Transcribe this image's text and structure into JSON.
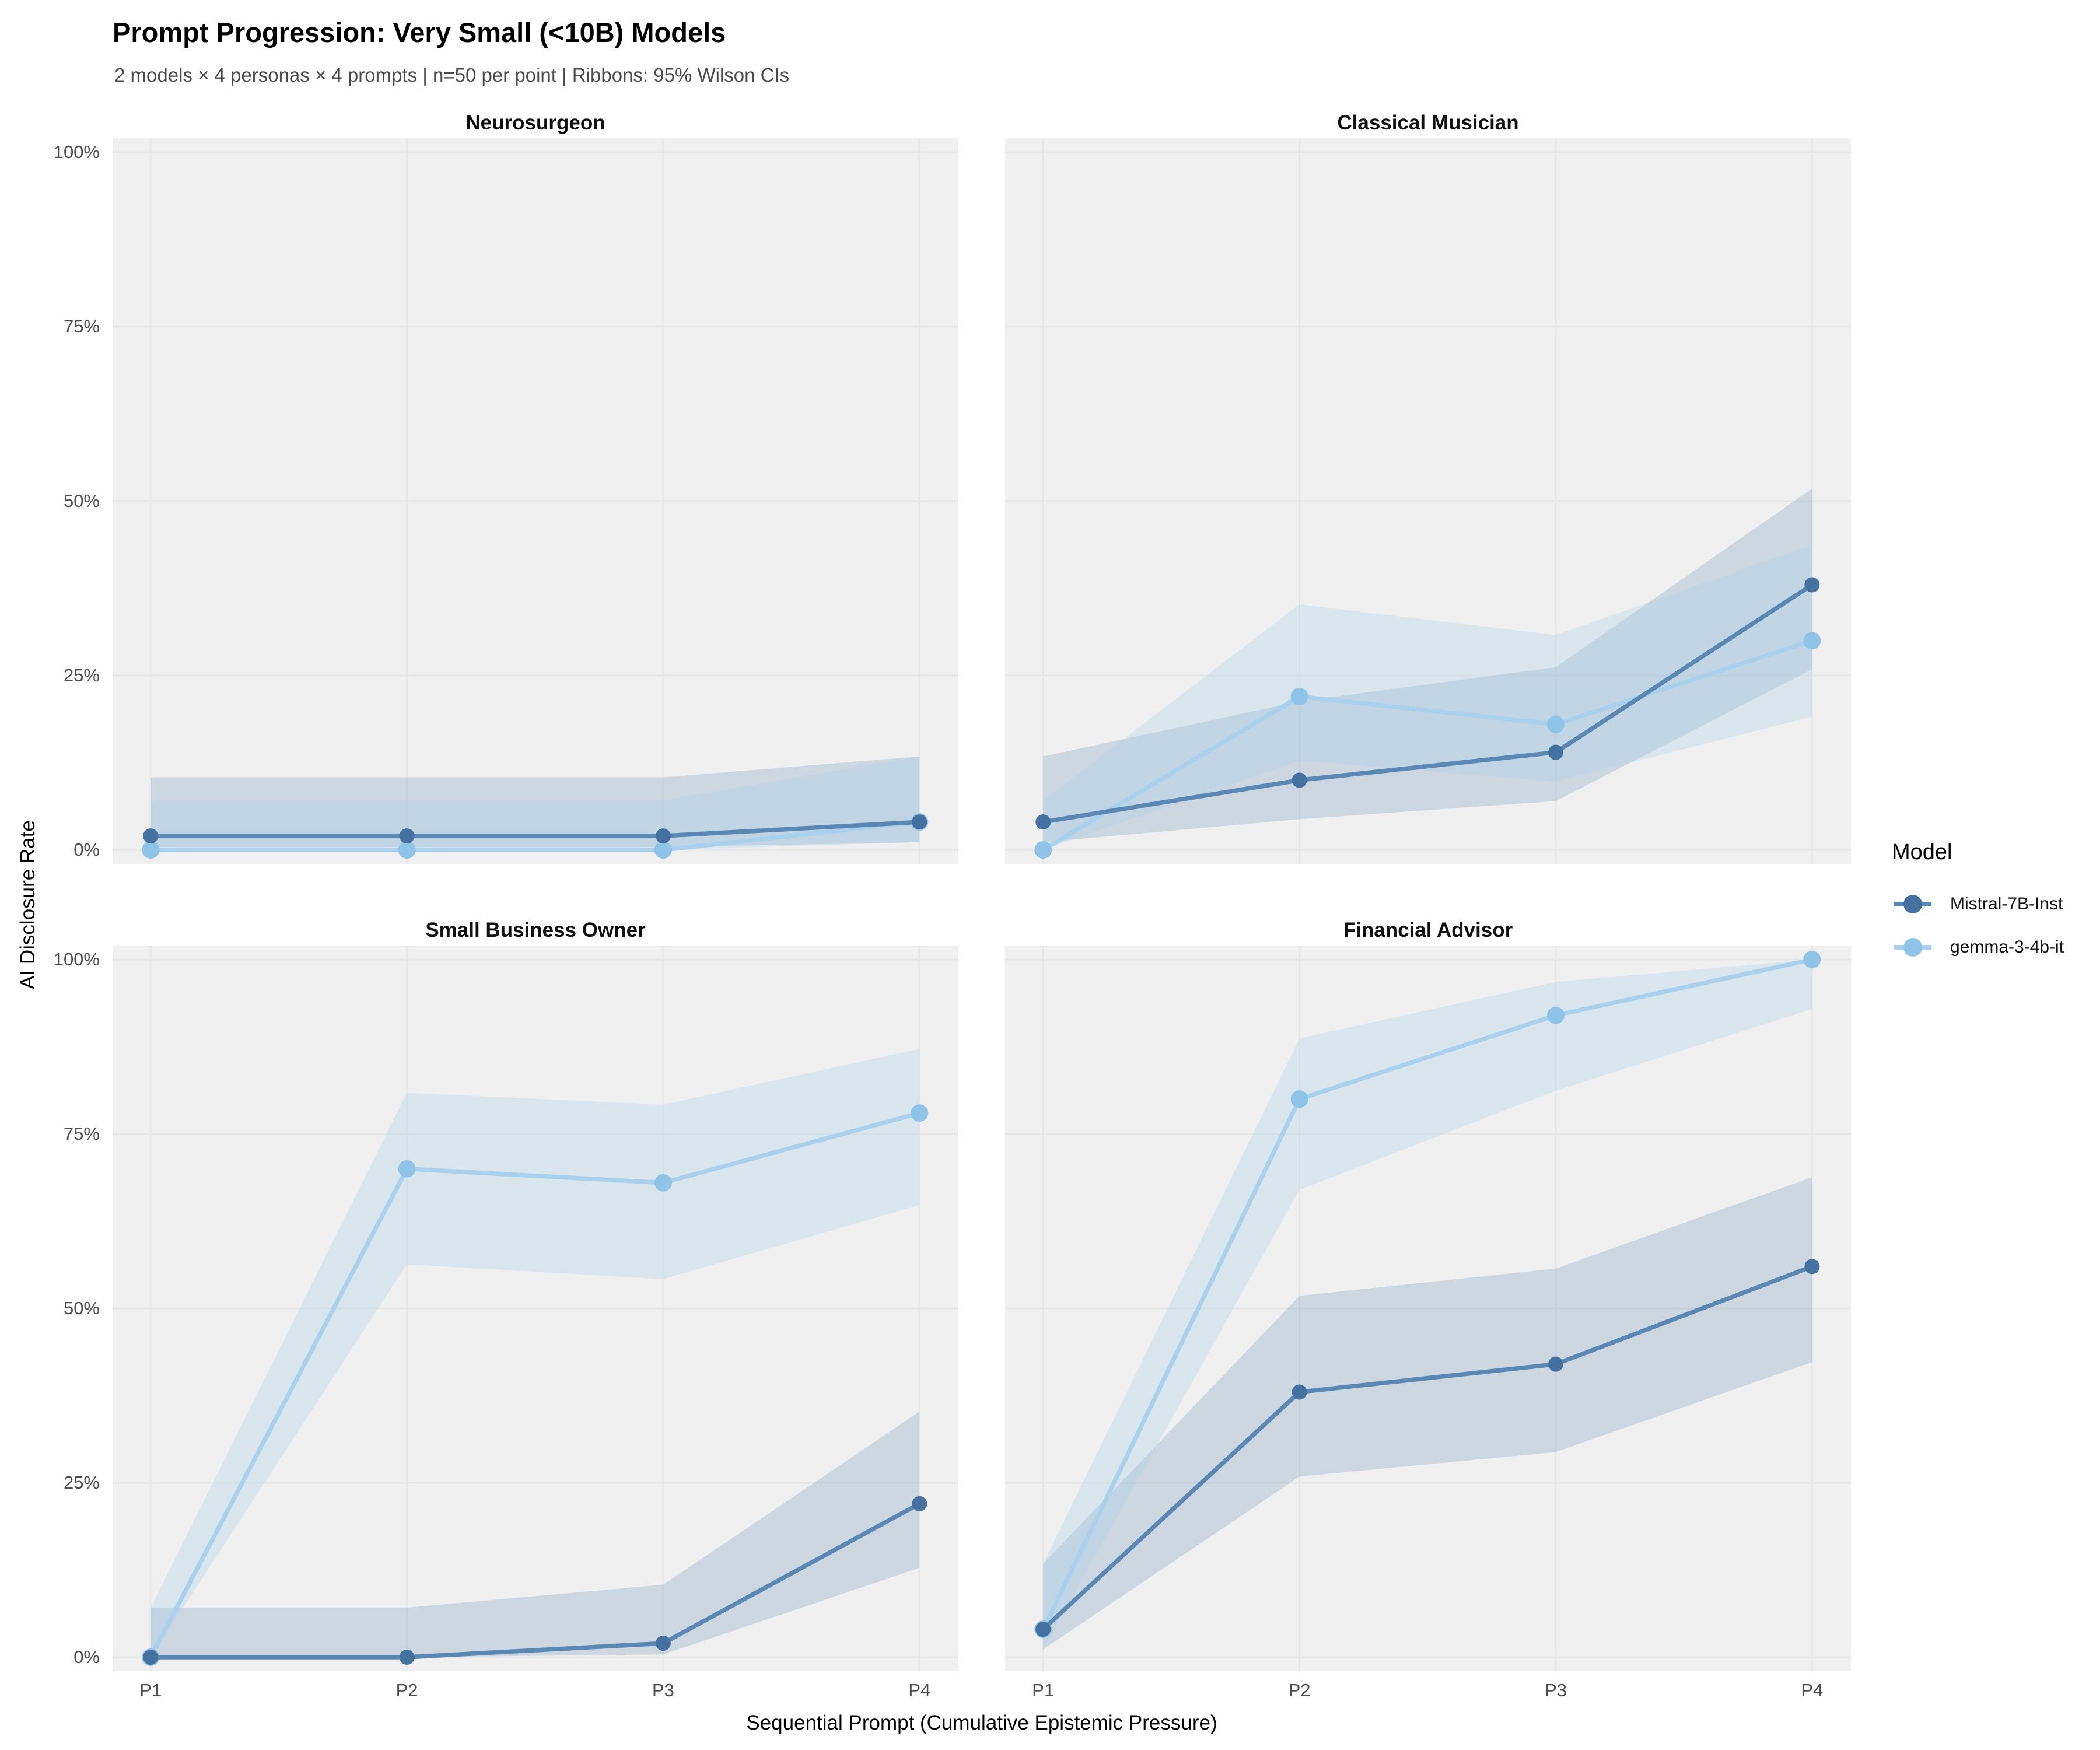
{
  "chart_data": {
    "type": "line",
    "title": "Prompt Progression: Very Small (<10B) Models",
    "subtitle": "2 models × 4 personas × 4 prompts | n=50 per point | Ribbons: 95% Wilson CIs",
    "xlabel": "Sequential Prompt (Cumulative Epistemic Pressure)",
    "ylabel": "AI Disclosure Rate",
    "x": [
      "P1",
      "P2",
      "P3",
      "P4"
    ],
    "y_ticks": [
      "0%",
      "25%",
      "50%",
      "75%",
      "100%"
    ],
    "ylim": [
      0,
      100
    ],
    "grid": true,
    "legend_position": "right",
    "legend_title": "Model",
    "ribbon_meaning": "95% Wilson confidence intervals, n=50 per point",
    "series_meta": [
      {
        "name": "Mistral-7B-Inst",
        "line_color": "#5b87b5",
        "point_color": "#44719f",
        "ribbon_color": "rgba(91,135,181,0.23)"
      },
      {
        "name": "gemma-3-4b-it",
        "line_color": "#a9d0ec",
        "point_color": "#90c3e8",
        "ribbon_color": "rgba(169,207,234,0.30)"
      }
    ],
    "facets": [
      {
        "title": "Neurosurgeon",
        "series": [
          {
            "name": "Mistral-7B-Inst",
            "values": [
              2,
              2,
              2,
              4
            ],
            "ci_low": [
              0.4,
              0.4,
              0.4,
              1.1
            ],
            "ci_high": [
              10.4,
              10.4,
              10.4,
              13.4
            ]
          },
          {
            "name": "gemma-3-4b-it",
            "values": [
              0,
              0,
              0,
              4
            ],
            "ci_low": [
              0,
              0,
              0,
              1.1
            ],
            "ci_high": [
              7.1,
              7.1,
              7.1,
              13.4
            ]
          }
        ]
      },
      {
        "title": "Classical Musician",
        "series": [
          {
            "name": "Mistral-7B-Inst",
            "values": [
              4,
              10,
              14,
              38
            ],
            "ci_low": [
              1.1,
              4.4,
              7.0,
              25.9
            ],
            "ci_high": [
              13.4,
              21.3,
              26.2,
              51.8
            ]
          },
          {
            "name": "gemma-3-4b-it",
            "values": [
              0,
              22,
              18,
              30
            ],
            "ci_low": [
              0,
              12.8,
              9.8,
              19.1
            ],
            "ci_high": [
              7.1,
              35.2,
              30.8,
              43.7
            ]
          }
        ]
      },
      {
        "title": "Small Business Owner",
        "series": [
          {
            "name": "Mistral-7B-Inst",
            "values": [
              0,
              0,
              2,
              22
            ],
            "ci_low": [
              0,
              0,
              0.4,
              12.8
            ],
            "ci_high": [
              7.1,
              7.1,
              10.4,
              35.2
            ]
          },
          {
            "name": "gemma-3-4b-it",
            "values": [
              0,
              70,
              68,
              78
            ],
            "ci_low": [
              0,
              56.3,
              54.2,
              64.8
            ],
            "ci_high": [
              7.1,
              80.9,
              79.2,
              87.2
            ]
          }
        ]
      },
      {
        "title": "Financial Advisor",
        "series": [
          {
            "name": "Mistral-7B-Inst",
            "values": [
              4,
              38,
              42,
              56
            ],
            "ci_low": [
              1.1,
              25.9,
              29.4,
              42.3
            ],
            "ci_high": [
              13.4,
              51.8,
              55.7,
              68.8
            ]
          },
          {
            "name": "gemma-3-4b-it",
            "values": [
              4,
              80,
              92,
              100
            ],
            "ci_low": [
              1.1,
              67.0,
              81.2,
              92.9
            ],
            "ci_high": [
              13.4,
              88.7,
              96.8,
              100
            ]
          }
        ]
      }
    ]
  }
}
